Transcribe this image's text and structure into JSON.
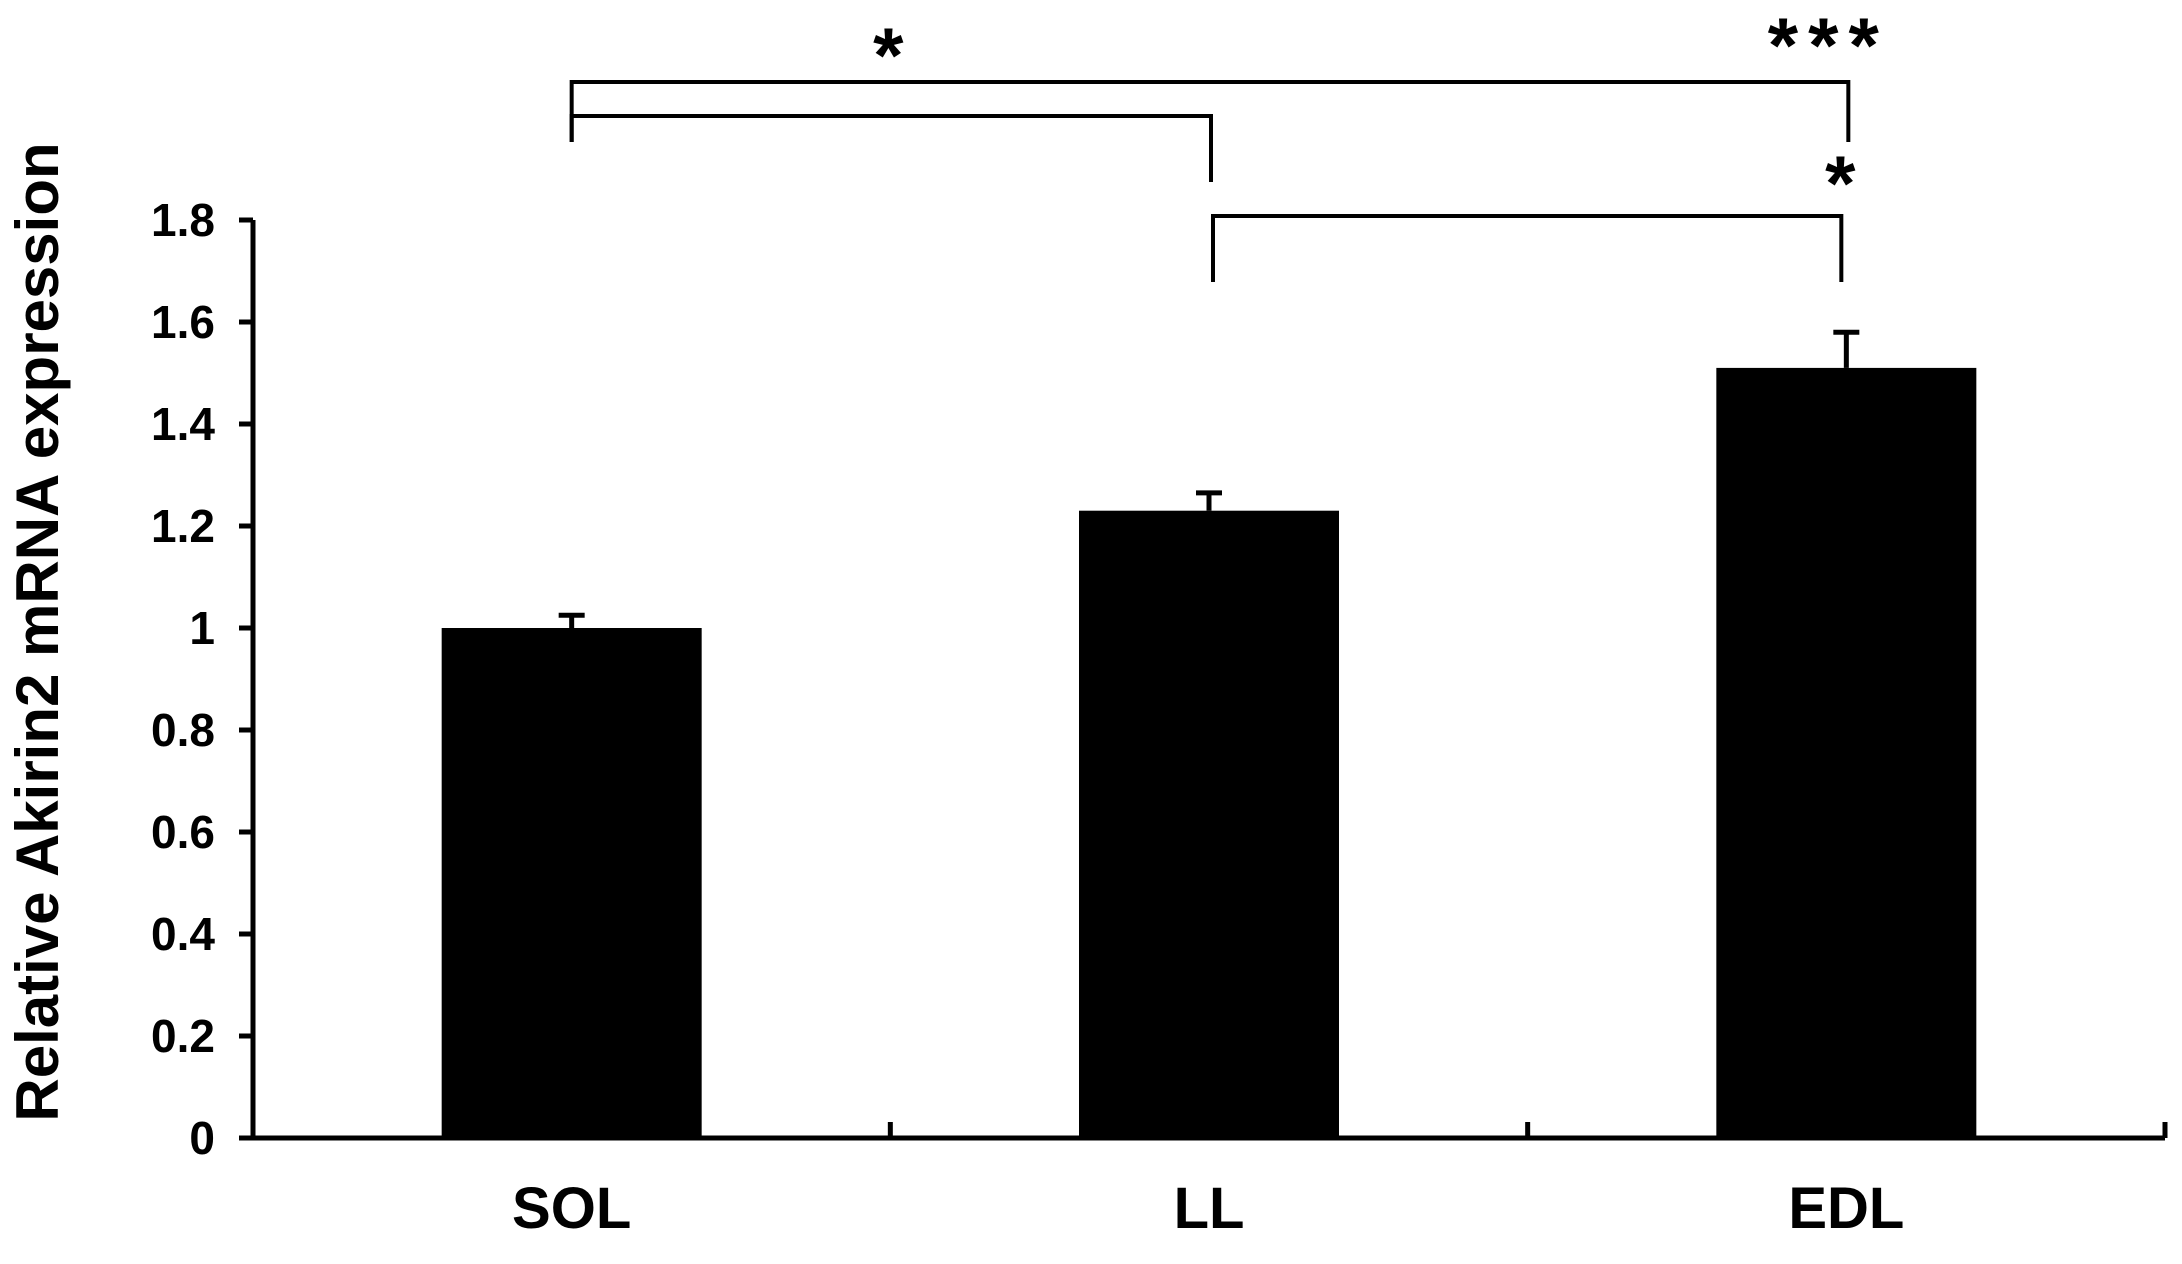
{
  "chart_data": {
    "type": "bar",
    "title": "",
    "xlabel": "",
    "ylabel": "Relative Akirin2 mRNA expression",
    "categories": [
      "SOL",
      "LL",
      "EDL"
    ],
    "values": [
      1.0,
      1.23,
      1.51
    ],
    "errors": [
      0.025,
      0.035,
      0.07
    ],
    "ylim": [
      0,
      1.8
    ],
    "yticks": [
      "0",
      "0.2",
      "0.4",
      "0.6",
      "0.8",
      "1",
      "1.2",
      "1.4",
      "1.6",
      "1.8"
    ],
    "grid": false,
    "legend": "none",
    "bar_color": "#000000",
    "significance": [
      {
        "from": "SOL",
        "to": "LL",
        "label": "*"
      },
      {
        "from": "SOL",
        "to": "EDL",
        "label": "***"
      },
      {
        "from": "LL",
        "to": "EDL",
        "label": "*"
      }
    ]
  }
}
